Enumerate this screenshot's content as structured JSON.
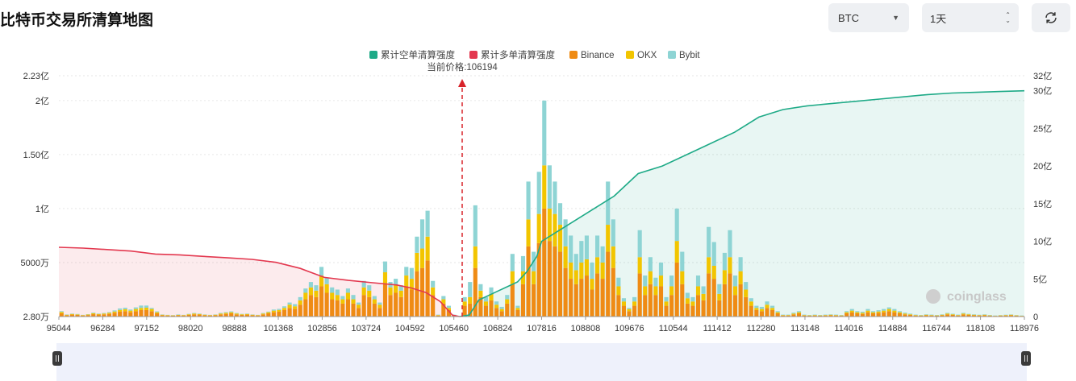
{
  "header": {
    "title": "比特币交易所清算地图",
    "symbol_value": "BTC",
    "period_value": "1天"
  },
  "colors": {
    "short_cum": "#1eaa87",
    "long_cum": "#e3384f",
    "binance": "#ef8b14",
    "okx": "#f2c500",
    "bybit": "#8ed4d4"
  },
  "chart_data": {
    "type": "bar",
    "current_price_label": "当前价格:106194",
    "current_price": 106194,
    "legend": [
      "累计空单清算强度",
      "累计多单清算强度",
      "Binance",
      "OKX",
      "Bybit"
    ],
    "x_ticks": [
      "95044",
      "96284",
      "97152",
      "98020",
      "98888",
      "101368",
      "102856",
      "103724",
      "104592",
      "105460",
      "106824",
      "107816",
      "108808",
      "109676",
      "110544",
      "111412",
      "112280",
      "113148",
      "114016",
      "114884",
      "116744",
      "118108",
      "118976"
    ],
    "left_axis": {
      "ticks": [
        "2.23亿",
        "2亿",
        "1.50亿",
        "1亿",
        "5000万",
        "2.80万"
      ],
      "values": [
        223000000,
        200000000,
        150000000,
        100000000,
        50000000,
        28000
      ],
      "ylim": [
        28000,
        223000000
      ]
    },
    "right_axis": {
      "ticks": [
        "32亿",
        "30亿",
        "25亿",
        "20亿",
        "15亿",
        "10亿",
        "5亿",
        "0"
      ],
      "values": [
        32,
        30,
        25,
        20,
        15,
        10,
        5,
        0
      ],
      "unit": "亿",
      "ylim": [
        0,
        32
      ]
    },
    "bar_stacks_yi": [
      [
        0.03,
        0.012,
        0.008
      ],
      [
        0.012,
        0.005,
        0.003
      ],
      [
        0.018,
        0.006,
        0.004
      ],
      [
        0.015,
        0.005,
        0.004
      ],
      [
        0.01,
        0.004,
        0.002
      ],
      [
        0.014,
        0.005,
        0.003
      ],
      [
        0.022,
        0.008,
        0.006
      ],
      [
        0.018,
        0.006,
        0.004
      ],
      [
        0.02,
        0.008,
        0.005
      ],
      [
        0.025,
        0.01,
        0.006
      ],
      [
        0.035,
        0.012,
        0.01
      ],
      [
        0.045,
        0.016,
        0.014
      ],
      [
        0.05,
        0.018,
        0.014
      ],
      [
        0.04,
        0.015,
        0.01
      ],
      [
        0.05,
        0.02,
        0.015
      ],
      [
        0.06,
        0.02,
        0.022
      ],
      [
        0.06,
        0.022,
        0.02
      ],
      [
        0.05,
        0.02,
        0.01
      ],
      [
        0.03,
        0.01,
        0.008
      ],
      [
        0.012,
        0.005,
        0.003
      ],
      [
        0.01,
        0.004,
        0.002
      ],
      [
        0.008,
        0.003,
        0.002
      ],
      [
        0.012,
        0.004,
        0.004
      ],
      [
        0.01,
        0.004,
        0.002
      ],
      [
        0.015,
        0.006,
        0.004
      ],
      [
        0.02,
        0.008,
        0.005
      ],
      [
        0.018,
        0.006,
        0.004
      ],
      [
        0.012,
        0.005,
        0.003
      ],
      [
        0.01,
        0.004,
        0.002
      ],
      [
        0.012,
        0.005,
        0.003
      ],
      [
        0.02,
        0.008,
        0.006
      ],
      [
        0.025,
        0.01,
        0.006
      ],
      [
        0.03,
        0.01,
        0.008
      ],
      [
        0.02,
        0.008,
        0.005
      ],
      [
        0.015,
        0.006,
        0.004
      ],
      [
        0.018,
        0.006,
        0.004
      ],
      [
        0.012,
        0.005,
        0.003
      ],
      [
        0.01,
        0.004,
        0.002
      ],
      [
        0.02,
        0.008,
        0.005
      ],
      [
        0.03,
        0.01,
        0.006
      ],
      [
        0.04,
        0.015,
        0.01
      ],
      [
        0.045,
        0.016,
        0.01
      ],
      [
        0.06,
        0.02,
        0.015
      ],
      [
        0.08,
        0.03,
        0.02
      ],
      [
        0.07,
        0.025,
        0.02
      ],
      [
        0.11,
        0.04,
        0.03
      ],
      [
        0.16,
        0.06,
        0.04
      ],
      [
        0.2,
        0.07,
        0.05
      ],
      [
        0.18,
        0.06,
        0.05
      ],
      [
        0.28,
        0.1,
        0.08
      ],
      [
        0.22,
        0.08,
        0.06
      ],
      [
        0.16,
        0.06,
        0.05
      ],
      [
        0.15,
        0.05,
        0.05
      ],
      [
        0.12,
        0.04,
        0.03
      ],
      [
        0.16,
        0.06,
        0.04
      ],
      [
        0.12,
        0.04,
        0.04
      ],
      [
        0.08,
        0.03,
        0.02
      ],
      [
        0.2,
        0.07,
        0.06
      ],
      [
        0.18,
        0.06,
        0.05
      ],
      [
        0.12,
        0.04,
        0.03
      ],
      [
        0.08,
        0.03,
        0.02
      ],
      [
        0.3,
        0.11,
        0.1
      ],
      [
        0.2,
        0.07,
        0.05
      ],
      [
        0.22,
        0.07,
        0.06
      ],
      [
        0.18,
        0.06,
        0.05
      ],
      [
        0.28,
        0.1,
        0.08
      ],
      [
        0.25,
        0.1,
        0.1
      ],
      [
        0.42,
        0.17,
        0.15
      ],
      [
        0.45,
        0.18,
        0.27
      ],
      [
        0.52,
        0.22,
        0.24
      ],
      [
        0.2,
        0.07,
        0.06
      ],
      [
        0.01,
        0.004,
        0.004
      ],
      [
        0.12,
        0.04,
        0.03
      ],
      [
        0.06,
        0.02,
        0.02
      ],
      [
        0.01,
        0.004,
        0.003
      ],
      [
        0.0,
        0.0,
        0.0
      ],
      [
        0.1,
        0.04,
        0.04
      ],
      [
        0.12,
        0.06,
        0.14
      ],
      [
        0.45,
        0.2,
        0.38
      ],
      [
        0.18,
        0.06,
        0.06
      ],
      [
        0.1,
        0.04,
        0.04
      ],
      [
        0.15,
        0.06,
        0.06
      ],
      [
        0.08,
        0.03,
        0.03
      ],
      [
        0.05,
        0.02,
        0.02
      ],
      [
        0.12,
        0.04,
        0.04
      ],
      [
        0.3,
        0.12,
        0.16
      ],
      [
        0.06,
        0.02,
        0.02
      ],
      [
        0.3,
        0.12,
        0.14
      ],
      [
        0.65,
        0.25,
        0.35
      ],
      [
        0.3,
        0.12,
        0.18
      ],
      [
        0.68,
        0.27,
        0.39
      ],
      [
        1.0,
        0.4,
        0.6
      ],
      [
        0.7,
        0.3,
        0.4
      ],
      [
        0.65,
        0.3,
        0.3
      ],
      [
        0.6,
        0.25,
        0.2
      ],
      [
        0.45,
        0.2,
        0.25
      ],
      [
        0.35,
        0.15,
        0.25
      ],
      [
        0.3,
        0.13,
        0.15
      ],
      [
        0.35,
        0.15,
        0.2
      ],
      [
        0.38,
        0.15,
        0.22
      ],
      [
        0.25,
        0.1,
        0.15
      ],
      [
        0.4,
        0.15,
        0.2
      ],
      [
        0.35,
        0.15,
        0.15
      ],
      [
        0.6,
        0.25,
        0.4
      ],
      [
        0.45,
        0.2,
        0.25
      ],
      [
        0.2,
        0.08,
        0.08
      ],
      [
        0.1,
        0.04,
        0.03
      ],
      [
        0.05,
        0.02,
        0.01
      ],
      [
        0.1,
        0.04,
        0.04
      ],
      [
        0.4,
        0.15,
        0.25
      ],
      [
        0.2,
        0.08,
        0.1
      ],
      [
        0.3,
        0.12,
        0.13
      ],
      [
        0.2,
        0.08,
        0.08
      ],
      [
        0.28,
        0.1,
        0.12
      ],
      [
        0.1,
        0.04,
        0.04
      ],
      [
        0.2,
        0.08,
        0.1
      ],
      [
        0.5,
        0.2,
        0.3
      ],
      [
        0.3,
        0.12,
        0.18
      ],
      [
        0.12,
        0.05,
        0.05
      ],
      [
        0.1,
        0.04,
        0.04
      ],
      [
        0.2,
        0.08,
        0.1
      ],
      [
        0.15,
        0.06,
        0.07
      ],
      [
        0.4,
        0.15,
        0.28
      ],
      [
        0.35,
        0.12,
        0.22
      ],
      [
        0.15,
        0.06,
        0.09
      ],
      [
        0.3,
        0.13,
        0.16
      ],
      [
        0.4,
        0.15,
        0.25
      ],
      [
        0.2,
        0.08,
        0.1
      ],
      [
        0.3,
        0.12,
        0.13
      ],
      [
        0.18,
        0.07,
        0.07
      ],
      [
        0.1,
        0.04,
        0.03
      ],
      [
        0.06,
        0.02,
        0.02
      ],
      [
        0.05,
        0.02,
        0.02
      ],
      [
        0.08,
        0.03,
        0.03
      ],
      [
        0.06,
        0.02,
        0.02
      ],
      [
        0.03,
        0.01,
        0.01
      ],
      [
        0.01,
        0.004,
        0.004
      ],
      [
        0.01,
        0.004,
        0.004
      ],
      [
        0.02,
        0.008,
        0.008
      ],
      [
        0.03,
        0.01,
        0.01
      ],
      [
        0.01,
        0.004,
        0.004
      ],
      [
        0.008,
        0.003,
        0.003
      ],
      [
        0.01,
        0.004,
        0.004
      ],
      [
        0.008,
        0.003,
        0.003
      ],
      [
        0.01,
        0.004,
        0.004
      ],
      [
        0.012,
        0.005,
        0.004
      ],
      [
        0.01,
        0.004,
        0.004
      ],
      [
        0.008,
        0.003,
        0.003
      ],
      [
        0.03,
        0.01,
        0.01
      ],
      [
        0.04,
        0.015,
        0.015
      ],
      [
        0.03,
        0.01,
        0.01
      ],
      [
        0.025,
        0.01,
        0.01
      ],
      [
        0.04,
        0.015,
        0.015
      ],
      [
        0.03,
        0.01,
        0.01
      ],
      [
        0.035,
        0.012,
        0.012
      ],
      [
        0.04,
        0.015,
        0.015
      ],
      [
        0.05,
        0.02,
        0.015
      ],
      [
        0.04,
        0.015,
        0.015
      ],
      [
        0.03,
        0.01,
        0.01
      ],
      [
        0.02,
        0.008,
        0.008
      ],
      [
        0.015,
        0.006,
        0.006
      ],
      [
        0.01,
        0.004,
        0.004
      ],
      [
        0.008,
        0.003,
        0.003
      ],
      [
        0.012,
        0.005,
        0.004
      ],
      [
        0.01,
        0.004,
        0.004
      ],
      [
        0.008,
        0.003,
        0.003
      ],
      [
        0.012,
        0.005,
        0.004
      ],
      [
        0.02,
        0.008,
        0.006
      ],
      [
        0.015,
        0.006,
        0.005
      ],
      [
        0.01,
        0.004,
        0.004
      ],
      [
        0.02,
        0.008,
        0.006
      ],
      [
        0.015,
        0.006,
        0.004
      ],
      [
        0.012,
        0.005,
        0.004
      ],
      [
        0.01,
        0.004,
        0.003
      ],
      [
        0.012,
        0.005,
        0.004
      ],
      [
        0.008,
        0.003,
        0.003
      ],
      [
        0.006,
        0.002,
        0.002
      ],
      [
        0.008,
        0.003,
        0.002
      ],
      [
        0.01,
        0.004,
        0.003
      ],
      [
        0.012,
        0.005,
        0.003
      ],
      [
        0.008,
        0.003,
        0.002
      ],
      [
        0.006,
        0.002,
        0.002
      ]
    ],
    "long_cumulative_yi": [
      [
        0,
        9.2
      ],
      [
        0.05,
        9.1
      ],
      [
        0.1,
        8.9
      ],
      [
        0.15,
        8.7
      ],
      [
        0.2,
        8.3
      ],
      [
        0.25,
        8.2
      ],
      [
        0.3,
        8.0
      ],
      [
        0.35,
        7.8
      ],
      [
        0.4,
        7.6
      ],
      [
        0.45,
        7.2
      ],
      [
        0.5,
        6.4
      ],
      [
        0.55,
        5.2
      ],
      [
        0.6,
        4.8
      ],
      [
        0.65,
        4.5
      ],
      [
        0.7,
        4.2
      ],
      [
        0.73,
        3.8
      ],
      [
        0.76,
        3.2
      ],
      [
        0.79,
        2.0
      ],
      [
        0.815,
        0.2
      ],
      [
        0.83,
        0
      ]
    ],
    "short_cumulative_yi": [
      [
        0.83,
        0
      ],
      [
        0.85,
        0.2
      ],
      [
        0.87,
        2.2
      ],
      [
        0.89,
        2.8
      ],
      [
        0.91,
        3.4
      ],
      [
        0.93,
        4.0
      ],
      [
        0.95,
        4.6
      ],
      [
        0.97,
        6.0
      ],
      [
        0.99,
        8.0
      ],
      [
        1.0,
        10.0
      ],
      [
        1.05,
        12.0
      ],
      [
        1.1,
        14.0
      ],
      [
        1.15,
        16.0
      ],
      [
        1.2,
        19.0
      ],
      [
        1.25,
        20.0
      ],
      [
        1.3,
        21.5
      ],
      [
        1.35,
        23.0
      ],
      [
        1.4,
        24.5
      ],
      [
        1.45,
        26.5
      ],
      [
        1.5,
        27.5
      ],
      [
        1.55,
        28.0
      ],
      [
        1.6,
        28.3
      ],
      [
        1.65,
        28.6
      ],
      [
        1.7,
        28.9
      ],
      [
        1.75,
        29.2
      ],
      [
        1.8,
        29.5
      ],
      [
        1.85,
        29.7
      ],
      [
        1.9,
        29.8
      ],
      [
        1.95,
        29.9
      ],
      [
        2.0,
        30.0
      ]
    ]
  }
}
